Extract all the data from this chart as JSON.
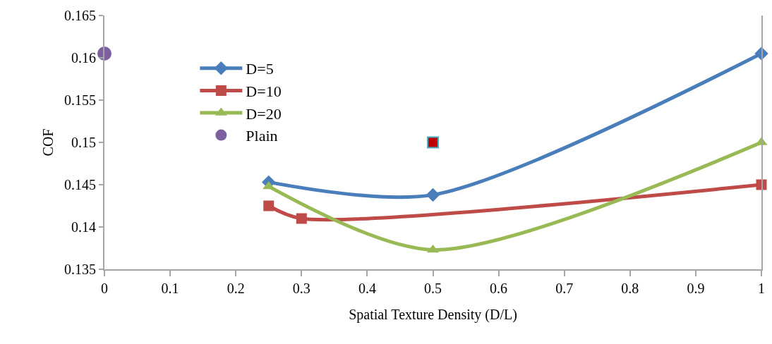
{
  "chart_data": {
    "type": "line",
    "xlabel": "Spatial Texture Density (D/L)",
    "ylabel": "COF",
    "xlim": [
      0,
      1
    ],
    "xticks": [
      0,
      0.1,
      0.2,
      0.3,
      0.4,
      0.5,
      0.6,
      0.7,
      0.8,
      0.9,
      1
    ],
    "ylim": [
      0.135,
      0.165
    ],
    "yticks": [
      0.135,
      0.14,
      0.145,
      0.15,
      0.155,
      0.16,
      0.165
    ],
    "legend": "top left",
    "line_style": "solid",
    "series": [
      {
        "name": "D=5",
        "color": "#4a7ebb",
        "marker": "diamond",
        "x": [
          0.25,
          0.5,
          1
        ],
        "values": [
          0.1453,
          0.1438,
          0.1605
        ]
      },
      {
        "name": "D=10",
        "color": "#be4b48",
        "marker": "square",
        "x": [
          0.25,
          0.3,
          1
        ],
        "values": [
          0.1425,
          0.141,
          0.145
        ]
      },
      {
        "name": "D=20",
        "color": "#98b954",
        "marker": "triangle",
        "x": [
          0.25,
          0.5,
          1
        ],
        "values": [
          0.1448,
          0.1373,
          0.15
        ]
      },
      {
        "name": "Plain",
        "color": "#7d60a0",
        "marker": "circle",
        "type": "scatter",
        "x": [
          0
        ],
        "values": [
          0.1605
        ]
      },
      {
        "color": "#c00000",
        "marker": "square",
        "type": "scatter",
        "x": [
          0.5
        ],
        "values": [
          0.15
        ]
      }
    ]
  }
}
